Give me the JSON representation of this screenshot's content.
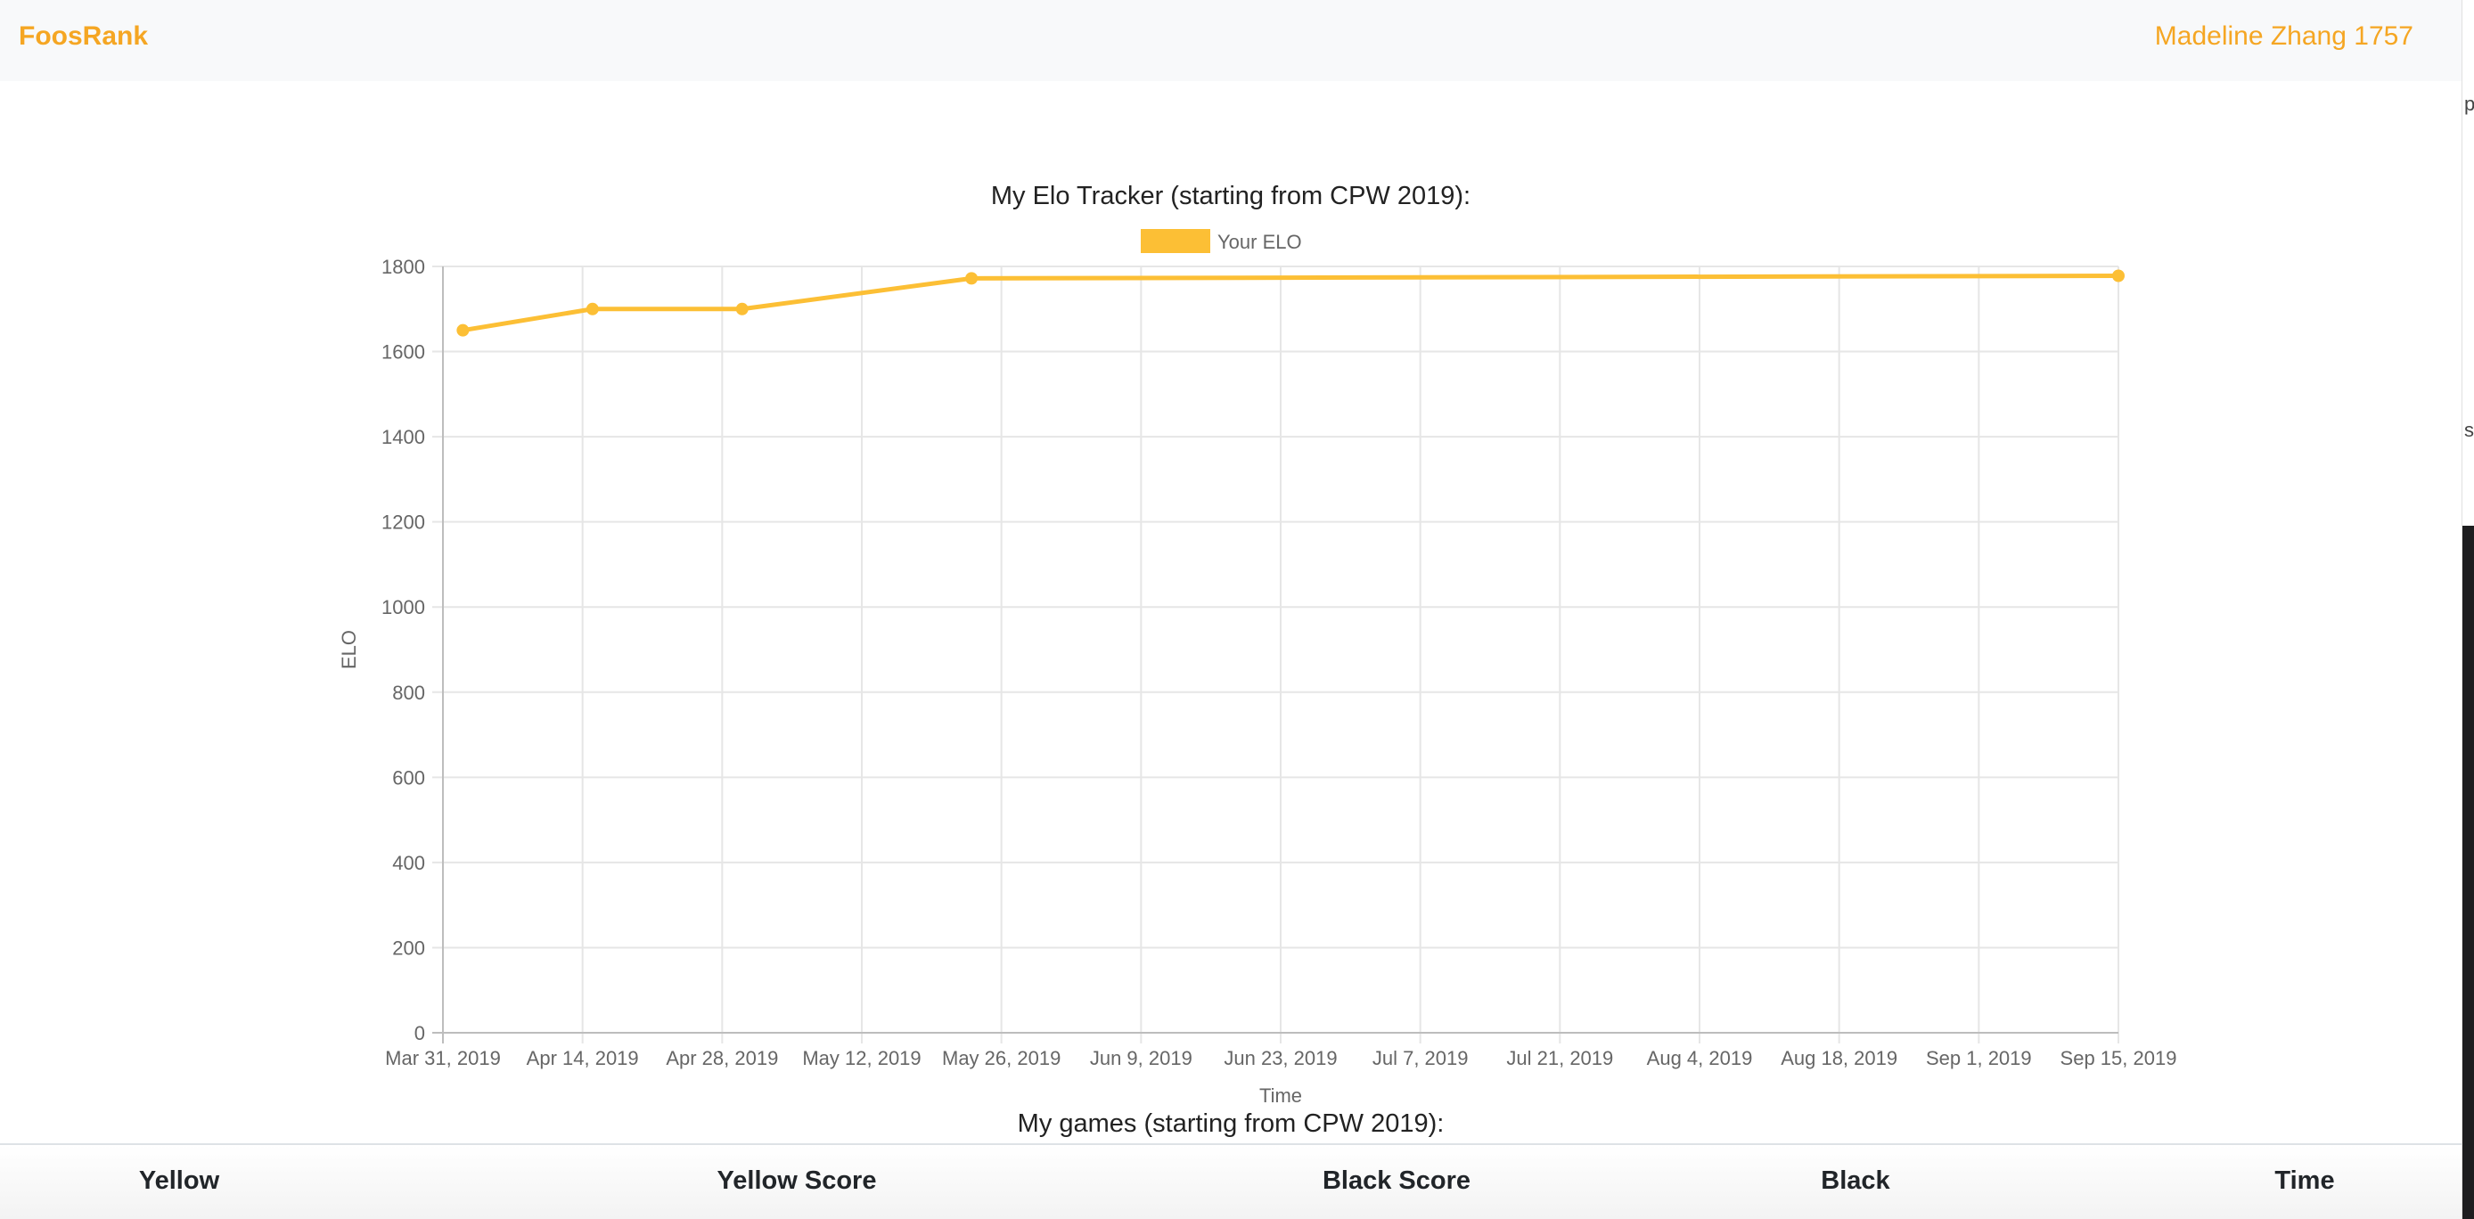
{
  "navbar": {
    "brand": "FoosRank",
    "user": "Madeline Zhang 1757"
  },
  "colors": {
    "accent": "#f5a623",
    "series": "#fcbf35"
  },
  "chart_title": "My Elo Tracker (starting from CPW 2019):",
  "chart_data": {
    "type": "line",
    "title": "My Elo Tracker (starting from CPW 2019):",
    "xlabel": "Time",
    "ylabel": "ELO",
    "ylim": [
      0,
      1800
    ],
    "yticks": [
      "0",
      "200",
      "400",
      "600",
      "800",
      "1000",
      "1200",
      "1400",
      "1600",
      "1800"
    ],
    "xticks": [
      "Mar 31, 2019",
      "Apr 14, 2019",
      "Apr 28, 2019",
      "May 12, 2019",
      "May 26, 2019",
      "Jun 9, 2019",
      "Jun 23, 2019",
      "Jul 7, 2019",
      "Jul 21, 2019",
      "Aug 4, 2019",
      "Aug 18, 2019",
      "Sep 1, 2019",
      "Sep 15, 2019"
    ],
    "legend": {
      "position": "top",
      "entries": [
        "Your ELO"
      ]
    },
    "grid": true,
    "series": [
      {
        "name": "Your ELO",
        "color": "#fcbf35",
        "points": [
          {
            "x": "Apr 2, 2019",
            "y": 1650
          },
          {
            "x": "Apr 15, 2019",
            "y": 1700
          },
          {
            "x": "Apr 30, 2019",
            "y": 1700
          },
          {
            "x": "May 23, 2019",
            "y": 1772
          },
          {
            "x": "Sep 15, 2019",
            "y": 1778
          }
        ]
      }
    ]
  },
  "games_title": "My games (starting from CPW 2019):",
  "games_table": {
    "columns": [
      "Yellow",
      "Yellow Score",
      "Black Score",
      "Black",
      "Time"
    ]
  },
  "side_glyphs": [
    "p",
    "s"
  ]
}
